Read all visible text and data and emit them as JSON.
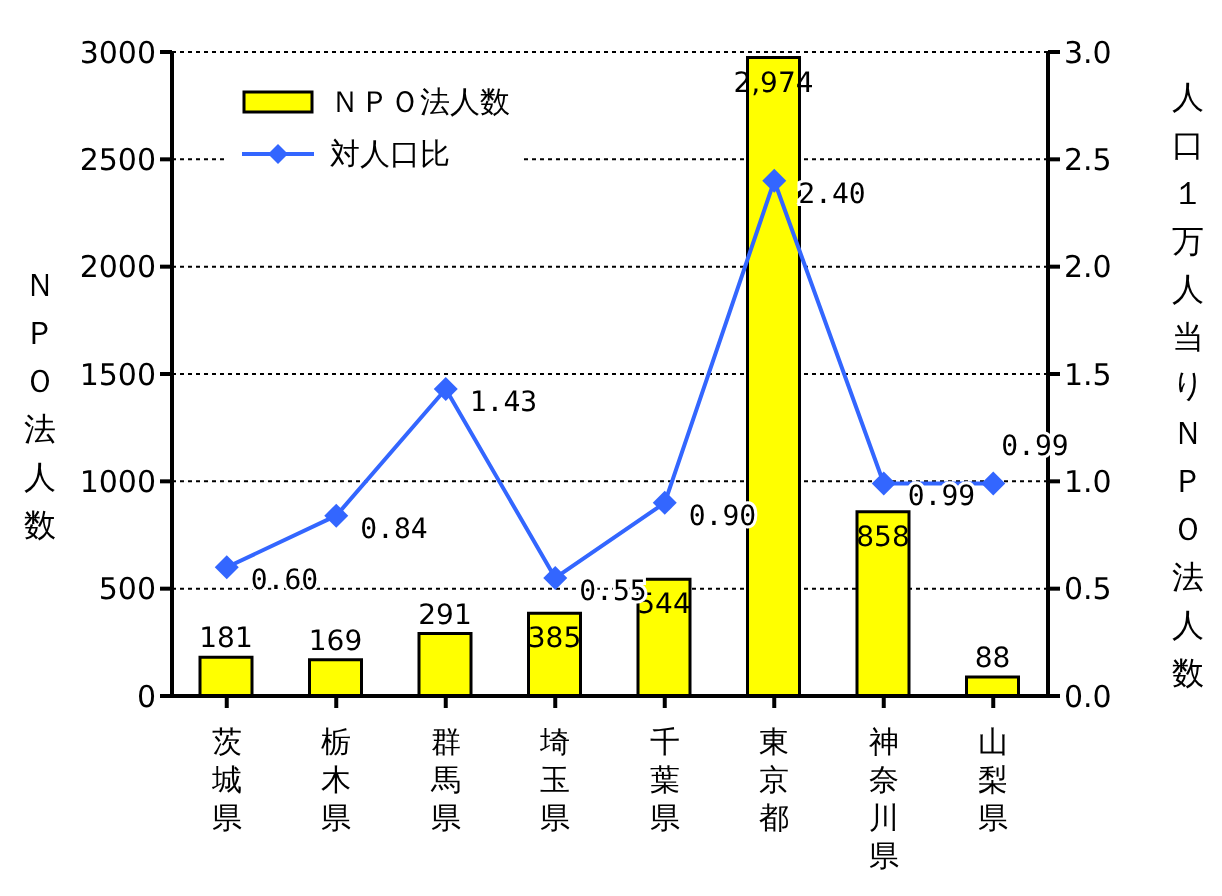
{
  "chart_data": {
    "type": "bar",
    "categories": [
      "茨城県",
      "栃木県",
      "群馬県",
      "埼玉県",
      "千葉県",
      "東京都",
      "神奈川県",
      "山梨県"
    ],
    "ylabel": "ＮＰＯ法人数",
    "y2label": "人口１万人当りＮＰＯ法人数",
    "series": [
      {
        "name": "ＮＰＯ法人数",
        "color": "#ffff00",
        "values": [
          181,
          169,
          291,
          385,
          544,
          2974,
          858,
          88
        ],
        "value_labels": [
          "181",
          "169",
          "291",
          "385",
          "544",
          "2,974",
          "858",
          "88"
        ]
      },
      {
        "name": "対人口比",
        "type": "line",
        "axis": "y2",
        "color": "#3366ff",
        "values": [
          0.6,
          0.84,
          1.43,
          0.55,
          0.9,
          2.4,
          0.99,
          0.99
        ],
        "value_labels": [
          "0.60",
          "0.84",
          "1.43",
          "0.55",
          "0.90",
          "2.40",
          "0.99",
          "0.99"
        ]
      }
    ],
    "ylim": [
      0,
      3000
    ],
    "yticks": [
      0,
      500,
      1000,
      1500,
      2000,
      2500,
      3000
    ],
    "y2lim": [
      0,
      3
    ],
    "y2ticks": [
      {
        "value": 0,
        "label": "0.0"
      },
      {
        "value": 0.5,
        "label": "0.5"
      },
      {
        "value": 1,
        "label": "1.0"
      },
      {
        "value": 1.5,
        "label": "1.5"
      },
      {
        "value": 2,
        "label": "2.0"
      },
      {
        "value": 2.5,
        "label": "2.5"
      },
      {
        "value": 3,
        "label": "3.0"
      }
    ],
    "grid": "y",
    "legend": "top left",
    "marker": "diamond",
    "line_style": "solid"
  }
}
